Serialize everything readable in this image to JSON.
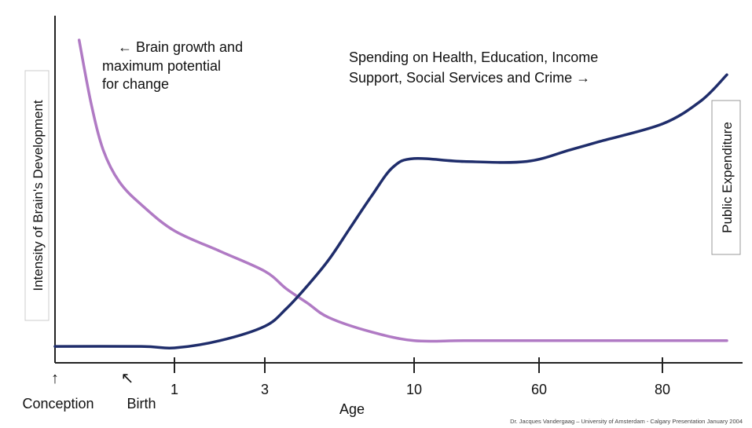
{
  "chart_data": {
    "type": "line",
    "title": "",
    "xlabel": "Age",
    "ylabel_left": "Intensity of Brain's Development",
    "ylabel_right": "Public Expenditure",
    "x_ticks": [
      {
        "label": "1",
        "x": 1
      },
      {
        "label": "3",
        "x": 3
      },
      {
        "label": "10",
        "x": 10
      },
      {
        "label": "60",
        "x": 60
      },
      {
        "label": "80",
        "x": 80
      }
    ],
    "x_markers": [
      {
        "label": "Conception",
        "arrow": "↑"
      },
      {
        "label": "Birth",
        "arrow": "↖"
      }
    ],
    "series": [
      {
        "name": "Brain growth and maximum potential for change",
        "color": "#b07ac4",
        "description_note": "",
        "points": [
          [
            -0.6,
            97
          ],
          [
            -0.45,
            75
          ],
          [
            -0.3,
            59
          ],
          [
            -0.1,
            48
          ],
          [
            0.3,
            40
          ],
          [
            1.0,
            31
          ],
          [
            2.0,
            24
          ],
          [
            3.0,
            17
          ],
          [
            4.0,
            11
          ],
          [
            5.0,
            6
          ],
          [
            6.0,
            1
          ],
          [
            8.0,
            -4
          ],
          [
            10.0,
            -7
          ],
          [
            30.0,
            -7
          ],
          [
            60.0,
            -7
          ],
          [
            90.0,
            -7
          ]
        ]
      },
      {
        "name": "Spending on Health, Education, Income Support, Social Services and Crime",
        "color": "#1f2d6b",
        "points": [
          [
            -0.9,
            -9
          ],
          [
            0.3,
            -9
          ],
          [
            1.0,
            -9.5
          ],
          [
            2.0,
            -7
          ],
          [
            3.0,
            -2
          ],
          [
            4.0,
            4
          ],
          [
            5.0,
            12
          ],
          [
            6.0,
            21
          ],
          [
            7.0,
            32
          ],
          [
            8.0,
            43
          ],
          [
            9.0,
            53
          ],
          [
            10.0,
            56
          ],
          [
            30.0,
            55
          ],
          [
            55.0,
            55
          ],
          [
            65.0,
            59
          ],
          [
            70.0,
            62
          ],
          [
            80.0,
            68
          ],
          [
            86.0,
            76
          ],
          [
            90.0,
            85
          ]
        ]
      }
    ],
    "annotations": [
      {
        "text": "← Brain growth and maximum potential for change",
        "lines": [
          "← Brain growth and",
          "maximum potential",
          "for change"
        ]
      },
      {
        "text": "Spending on Health, Education, Income Support, Social Services and Crime →",
        "lines": [
          "Spending on Health, Education, Income",
          "Support, Social Services and Crime  →"
        ]
      }
    ],
    "credit": "Dr. Jacques Vandergaag – University of Amsterdam - Calgary Presentation January 2004",
    "grid": false,
    "legend": "none"
  }
}
